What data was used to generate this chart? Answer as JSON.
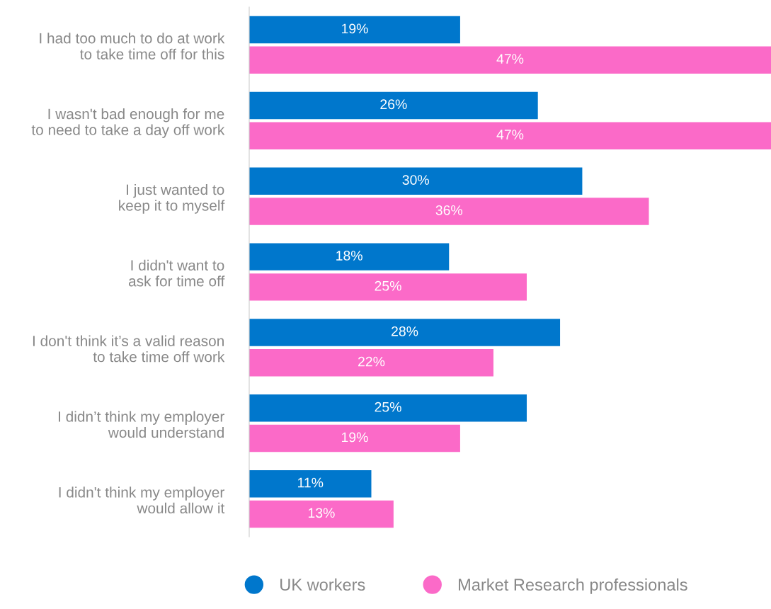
{
  "chart_data": {
    "type": "bar",
    "orientation": "horizontal",
    "categories": [
      "I had too much to do at work\nto take time off for this",
      "I wasn't bad enough for me\nto need to take a day off work",
      "I just wanted to\nkeep it to myself",
      "I didn't want to\nask for time off",
      "I don't think it’s a valid reason\nto take time off work",
      "I didn’t think my employer\nwould understand",
      "I didn't think my employer\nwould allow it"
    ],
    "series": [
      {
        "name": "UK workers",
        "color": "#0077cc",
        "values": [
          19,
          26,
          30,
          18,
          28,
          25,
          11
        ],
        "value_labels": [
          "19%",
          "26%",
          "30%",
          "18%",
          "28%",
          "25%",
          "11%"
        ]
      },
      {
        "name": "Market Research professionals",
        "color": "#fb6ac8",
        "values": [
          47,
          47,
          36,
          25,
          22,
          19,
          13
        ],
        "value_labels": [
          "47%",
          "47%",
          "36%",
          "25%",
          "22%",
          "19%",
          "13%"
        ]
      }
    ],
    "legend": "bottom",
    "grid": false,
    "tick_labels": "y"
  }
}
